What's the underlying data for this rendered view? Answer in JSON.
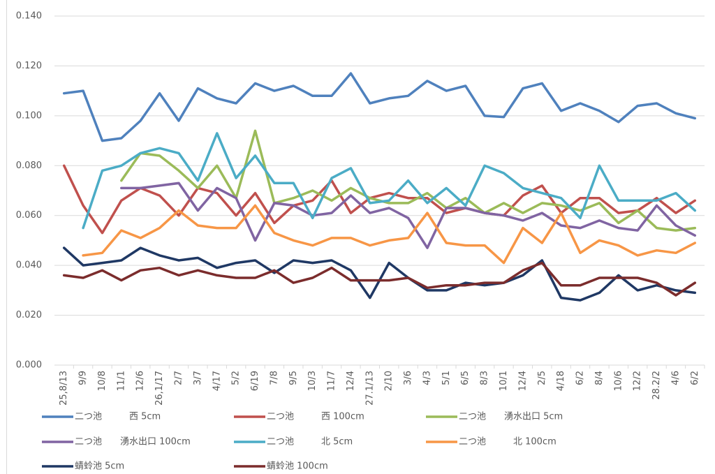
{
  "chart_data": {
    "type": "line",
    "categories": [
      "25,8/13",
      "9/9",
      "10/8",
      "11/1",
      "12/6",
      "26,1/17",
      "2/7",
      "3/7",
      "4/17",
      "5/2",
      "6/19",
      "7/8",
      "9/5",
      "10/3",
      "11/7",
      "12/4",
      "27.1/13",
      "2/10",
      "3/6",
      "4/3",
      "5/1",
      "6/5",
      "8/3",
      "10/1",
      "12/4",
      "2/5",
      "4/18",
      "6/2",
      "8/4",
      "10/6",
      "12/2",
      "28.2/2",
      "4/6",
      "6/2"
    ],
    "series": [
      {
        "name": "二つ池　　　西 5cm",
        "color": "#4f81bd",
        "values": [
          0.109,
          0.11,
          0.09,
          0.091,
          0.098,
          0.109,
          0.098,
          0.111,
          0.107,
          0.105,
          0.113,
          0.11,
          0.112,
          0.108,
          0.108,
          0.117,
          0.105,
          0.107,
          0.108,
          0.114,
          0.11,
          0.112,
          0.1,
          0.0995,
          0.111,
          0.113,
          0.102,
          0.105,
          0.102,
          0.0975,
          0.104,
          0.105,
          0.101,
          0.099
        ]
      },
      {
        "name": "二つ池　　　西 100cm",
        "color": "#c0504d",
        "values": [
          0.08,
          0.064,
          0.053,
          0.066,
          0.071,
          0.068,
          0.06,
          0.071,
          0.069,
          0.06,
          0.069,
          0.057,
          0.064,
          0.066,
          0.074,
          0.061,
          0.067,
          0.069,
          0.067,
          0.067,
          0.061,
          0.063,
          0.061,
          0.06,
          0.068,
          0.072,
          0.061,
          0.067,
          0.067,
          0.061,
          0.062,
          0.067,
          0.061,
          0.066
        ]
      },
      {
        "name": "二つ池　　湧水出口 5cm",
        "color": "#9bbb59",
        "values": [
          null,
          null,
          null,
          0.074,
          0.085,
          0.084,
          0.078,
          0.071,
          0.08,
          0.067,
          0.094,
          0.065,
          0.067,
          0.07,
          0.066,
          0.071,
          0.067,
          0.065,
          0.065,
          0.069,
          0.063,
          0.067,
          0.061,
          0.065,
          0.061,
          0.065,
          0.064,
          0.062,
          0.065,
          0.057,
          0.062,
          0.055,
          0.054,
          0.055
        ]
      },
      {
        "name": "二つ池　　湧水出口 100cm",
        "color": "#8064a2",
        "values": [
          null,
          null,
          null,
          0.071,
          0.071,
          0.072,
          0.073,
          0.062,
          0.071,
          0.067,
          0.05,
          0.065,
          0.064,
          0.06,
          0.061,
          0.068,
          0.061,
          0.063,
          0.059,
          0.047,
          0.063,
          0.063,
          0.061,
          0.06,
          0.058,
          0.061,
          0.056,
          0.055,
          0.058,
          0.055,
          0.054,
          0.064,
          0.056,
          0.052
        ]
      },
      {
        "name": "二つ池　　　北 5cm",
        "color": "#4bacc6",
        "values": [
          null,
          0.055,
          0.078,
          0.08,
          0.085,
          0.087,
          0.085,
          0.074,
          0.093,
          0.075,
          0.084,
          0.073,
          0.073,
          0.059,
          0.075,
          0.079,
          0.065,
          0.066,
          0.074,
          0.065,
          0.071,
          0.064,
          0.08,
          0.077,
          0.071,
          0.069,
          0.067,
          0.059,
          0.08,
          0.066,
          0.066,
          0.066,
          0.069,
          0.062
        ]
      },
      {
        "name": "二つ池　　　北 100cm",
        "color": "#f79646",
        "values": [
          null,
          0.044,
          0.045,
          0.054,
          0.051,
          0.055,
          0.062,
          0.056,
          0.055,
          0.055,
          0.064,
          0.053,
          0.05,
          0.048,
          0.051,
          0.051,
          0.048,
          0.05,
          0.051,
          0.061,
          0.049,
          0.048,
          0.048,
          0.041,
          0.055,
          0.049,
          0.061,
          0.045,
          0.05,
          0.048,
          0.044,
          0.046,
          0.045,
          0.049
        ]
      },
      {
        "name": "蜻蛉池 5cm",
        "color": "#1f3864",
        "values": [
          0.047,
          0.04,
          0.041,
          0.042,
          0.047,
          0.044,
          0.042,
          0.043,
          0.039,
          0.041,
          0.042,
          0.037,
          0.042,
          0.041,
          0.042,
          0.038,
          0.027,
          0.041,
          0.035,
          0.03,
          0.03,
          0.033,
          0.032,
          0.033,
          0.036,
          0.042,
          0.027,
          0.026,
          0.029,
          0.036,
          0.03,
          0.032,
          0.03,
          0.029
        ]
      },
      {
        "name": "蜻蛉池 100cm",
        "color": "#7b2c2c",
        "values": [
          0.036,
          0.035,
          0.038,
          0.034,
          0.038,
          0.039,
          0.036,
          0.038,
          0.036,
          0.035,
          0.035,
          0.038,
          0.033,
          0.035,
          0.039,
          0.034,
          0.034,
          0.034,
          0.035,
          0.031,
          0.032,
          0.032,
          0.033,
          0.033,
          0.038,
          0.041,
          0.032,
          0.032,
          0.035,
          0.035,
          0.035,
          0.033,
          0.028,
          0.033
        ]
      }
    ],
    "ylim": [
      0,
      0.14
    ],
    "yticks": [
      {
        "value": 0,
        "label": "0.000"
      },
      {
        "value": 0.02,
        "label": "0.020"
      },
      {
        "value": 0.04,
        "label": "0.040"
      },
      {
        "value": 0.06,
        "label": "0.060"
      },
      {
        "value": 0.08,
        "label": "0.080"
      },
      {
        "value": 0.1,
        "label": "0.100"
      },
      {
        "value": 0.12,
        "label": "0.120"
      },
      {
        "value": 0.14,
        "label": "0.140"
      }
    ],
    "grid": true,
    "legend": "bottom"
  }
}
